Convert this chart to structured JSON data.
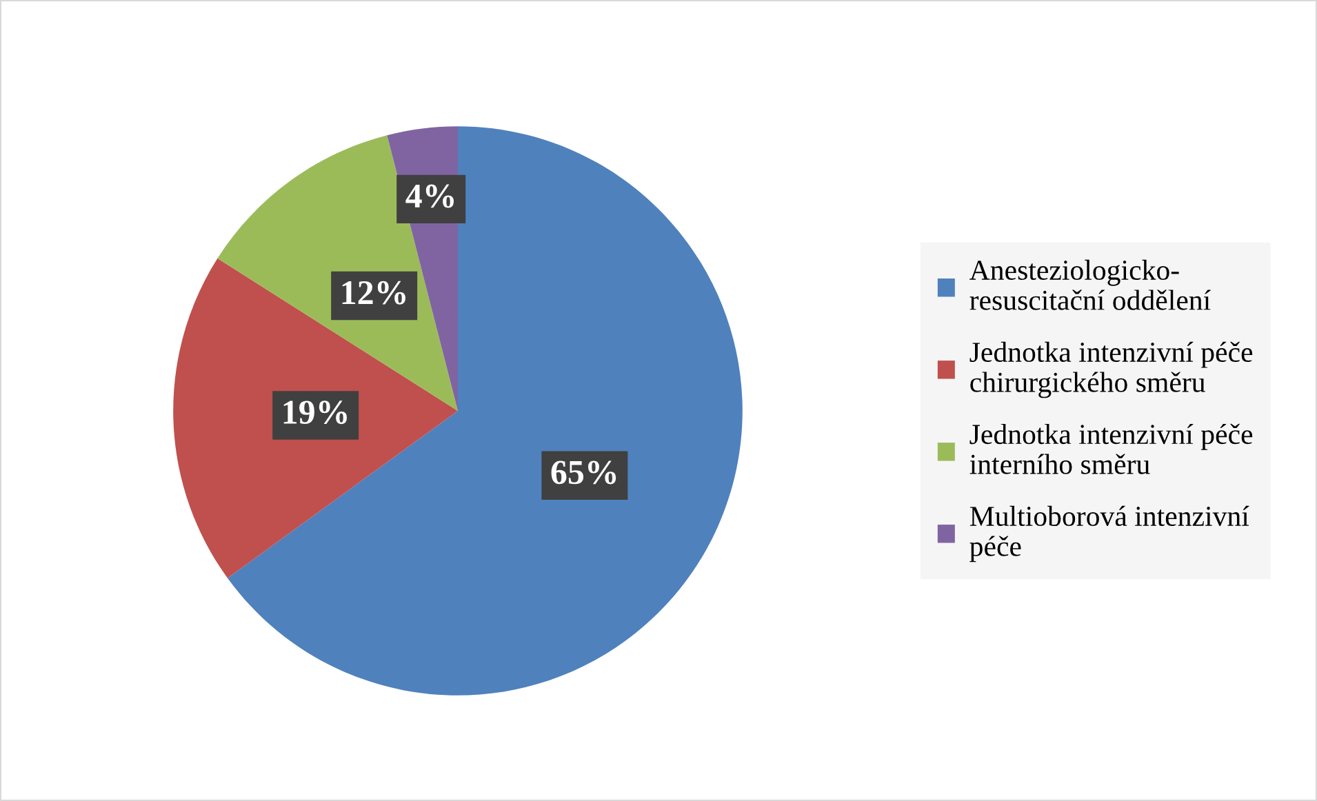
{
  "chart_data": {
    "type": "pie",
    "categories": [
      "Anesteziologicko-\nresuscitační oddělení",
      "Jednotka intenzivní péče\nchirurgického směru",
      "Jednotka intenzivní péče\ninterního směru",
      "Multioborová intenzivní\npéče"
    ],
    "values": [
      65,
      19,
      12,
      4
    ],
    "colors": [
      "#4f81bd",
      "#c0504d",
      "#9bbb59",
      "#8064a2"
    ],
    "value_labels": [
      "65%",
      "19%",
      "12%",
      "4%"
    ],
    "legend": "right"
  }
}
